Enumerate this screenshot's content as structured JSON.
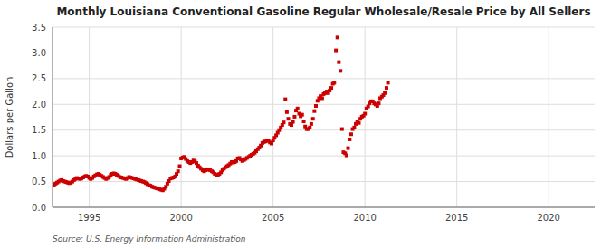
{
  "chart_data": {
    "type": "scatter",
    "title": "Monthly Louisiana Conventional Gasoline Regular Wholesale/Resale Price by All Sellers",
    "ylabel": "Dollars per Gallon",
    "annotations": [
      "Source: U.S. Energy Information Administration"
    ],
    "color": "#CC0000",
    "marker": "square",
    "grid": true,
    "xlim": [
      1993.0,
      2022.5
    ],
    "ylim": [
      0.0,
      3.5
    ],
    "xticks": [
      1995,
      2000,
      2005,
      2010,
      2015,
      2020
    ],
    "yticks": [
      {
        "value": 0.0,
        "label": "0.0"
      },
      0.5,
      {
        "value": 1.0,
        "label": "1.0"
      },
      1.5,
      {
        "value": 2.0,
        "label": "2.0"
      },
      2.5,
      {
        "value": 3.0,
        "label": "3.0"
      },
      3.5
    ],
    "x": [
      1993.0,
      1993.08,
      1993.17,
      1993.25,
      1993.33,
      1993.42,
      1993.5,
      1993.58,
      1993.67,
      1993.75,
      1993.83,
      1993.92,
      1994.0,
      1994.08,
      1994.17,
      1994.25,
      1994.33,
      1994.42,
      1994.5,
      1994.58,
      1994.67,
      1994.75,
      1994.83,
      1994.92,
      1995.0,
      1995.08,
      1995.17,
      1995.25,
      1995.33,
      1995.42,
      1995.5,
      1995.58,
      1995.67,
      1995.75,
      1995.83,
      1995.92,
      1996.0,
      1996.08,
      1996.17,
      1996.25,
      1996.33,
      1996.42,
      1996.5,
      1996.58,
      1996.67,
      1996.75,
      1996.83,
      1996.92,
      1997.0,
      1997.08,
      1997.17,
      1997.25,
      1997.33,
      1997.42,
      1997.5,
      1997.58,
      1997.67,
      1997.75,
      1997.83,
      1997.92,
      1998.0,
      1998.08,
      1998.17,
      1998.25,
      1998.33,
      1998.42,
      1998.5,
      1998.58,
      1998.67,
      1998.75,
      1998.83,
      1998.92,
      1999.0,
      1999.08,
      1999.17,
      1999.25,
      1999.33,
      1999.42,
      1999.5,
      1999.58,
      1999.67,
      1999.75,
      1999.83,
      1999.92,
      2000.0,
      2000.08,
      2000.17,
      2000.25,
      2000.33,
      2000.42,
      2000.5,
      2000.58,
      2000.67,
      2000.75,
      2000.83,
      2000.92,
      2001.0,
      2001.08,
      2001.17,
      2001.25,
      2001.33,
      2001.42,
      2001.5,
      2001.58,
      2001.67,
      2001.75,
      2001.83,
      2001.92,
      2002.0,
      2002.08,
      2002.17,
      2002.25,
      2002.33,
      2002.42,
      2002.5,
      2002.58,
      2002.67,
      2002.75,
      2002.83,
      2002.92,
      2003.0,
      2003.08,
      2003.17,
      2003.25,
      2003.33,
      2003.42,
      2003.5,
      2003.58,
      2003.67,
      2003.75,
      2003.83,
      2003.92,
      2004.0,
      2004.08,
      2004.17,
      2004.25,
      2004.33,
      2004.42,
      2004.5,
      2004.58,
      2004.67,
      2004.75,
      2004.83,
      2004.92,
      2005.0,
      2005.08,
      2005.17,
      2005.25,
      2005.33,
      2005.42,
      2005.5,
      2005.58,
      2005.67,
      2005.75,
      2005.83,
      2005.92,
      2006.0,
      2006.08,
      2006.17,
      2006.25,
      2006.33,
      2006.42,
      2006.5,
      2006.58,
      2006.67,
      2006.75,
      2006.83,
      2006.92,
      2007.0,
      2007.08,
      2007.17,
      2007.25,
      2007.33,
      2007.42,
      2007.5,
      2007.58,
      2007.67,
      2007.75,
      2007.83,
      2007.92,
      2008.0,
      2008.08,
      2008.17,
      2008.25,
      2008.33,
      2008.42,
      2008.5,
      2008.58,
      2008.67,
      2008.75,
      2008.83,
      2008.92,
      2009.0,
      2009.08,
      2009.17,
      2009.25,
      2009.33,
      2009.42,
      2009.5,
      2009.58,
      2009.67,
      2009.75,
      2009.83,
      2009.92,
      2010.0,
      2010.08,
      2010.17,
      2010.25,
      2010.33,
      2010.42,
      2010.5,
      2010.58,
      2010.67,
      2010.75,
      2010.83,
      2010.92,
      2011.0,
      2011.08,
      2011.17,
      2011.25
    ],
    "values": [
      0.45,
      0.44,
      0.46,
      0.48,
      0.5,
      0.52,
      0.53,
      0.51,
      0.5,
      0.49,
      0.48,
      0.47,
      0.48,
      0.5,
      0.53,
      0.55,
      0.57,
      0.56,
      0.55,
      0.56,
      0.58,
      0.6,
      0.61,
      0.6,
      0.57,
      0.55,
      0.57,
      0.6,
      0.62,
      0.64,
      0.65,
      0.63,
      0.61,
      0.59,
      0.57,
      0.55,
      0.57,
      0.59,
      0.63,
      0.65,
      0.66,
      0.65,
      0.63,
      0.61,
      0.59,
      0.58,
      0.57,
      0.56,
      0.55,
      0.57,
      0.59,
      0.58,
      0.57,
      0.56,
      0.55,
      0.54,
      0.53,
      0.52,
      0.51,
      0.5,
      0.49,
      0.47,
      0.45,
      0.43,
      0.42,
      0.4,
      0.39,
      0.38,
      0.37,
      0.36,
      0.35,
      0.34,
      0.33,
      0.36,
      0.4,
      0.46,
      0.51,
      0.56,
      0.57,
      0.58,
      0.6,
      0.65,
      0.7,
      0.8,
      0.95,
      0.97,
      0.98,
      0.94,
      0.9,
      0.88,
      0.86,
      0.88,
      0.91,
      0.89,
      0.86,
      0.81,
      0.78,
      0.75,
      0.72,
      0.7,
      0.72,
      0.74,
      0.73,
      0.72,
      0.7,
      0.68,
      0.65,
      0.63,
      0.63,
      0.65,
      0.68,
      0.72,
      0.75,
      0.78,
      0.8,
      0.82,
      0.85,
      0.88,
      0.87,
      0.88,
      0.9,
      0.95,
      0.96,
      0.93,
      0.9,
      0.92,
      0.94,
      0.96,
      0.98,
      1.0,
      1.02,
      1.04,
      1.06,
      1.09,
      1.13,
      1.16,
      1.2,
      1.25,
      1.27,
      1.28,
      1.3,
      1.29,
      1.26,
      1.24,
      1.3,
      1.35,
      1.4,
      1.45,
      1.5,
      1.55,
      1.6,
      1.65,
      2.1,
      1.85,
      1.72,
      1.62,
      1.6,
      1.66,
      1.76,
      1.88,
      1.92,
      1.82,
      1.77,
      1.8,
      1.67,
      1.57,
      1.52,
      1.52,
      1.55,
      1.62,
      1.72,
      1.87,
      1.97,
      2.07,
      2.12,
      2.16,
      2.12,
      2.2,
      2.22,
      2.25,
      2.22,
      2.27,
      2.32,
      2.4,
      2.42,
      3.05,
      3.3,
      2.82,
      2.65,
      1.52,
      1.07,
      1.05,
      1.01,
      1.15,
      1.32,
      1.42,
      1.52,
      1.55,
      1.62,
      1.66,
      1.64,
      1.72,
      1.76,
      1.78,
      1.82,
      1.92,
      1.96,
      2.02,
      2.06,
      2.06,
      2.02,
      2.0,
      1.97,
      2.02,
      2.12,
      2.15,
      2.18,
      2.22,
      2.32,
      2.42
    ]
  }
}
